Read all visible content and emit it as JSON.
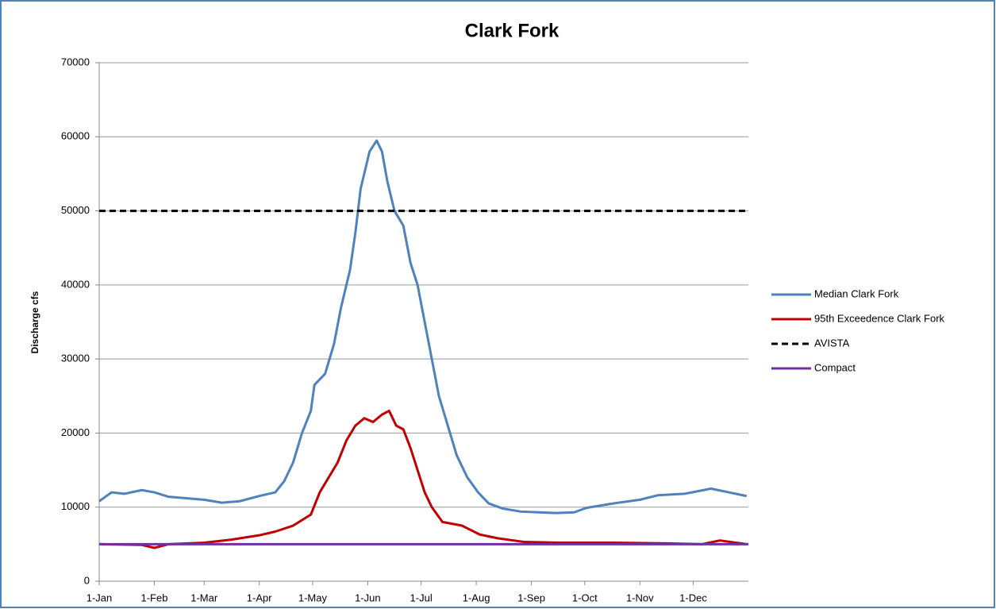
{
  "chart_data": {
    "type": "line",
    "title": "Clark Fork",
    "y_label": "Discharge cfs",
    "xlim": [
      1,
      366
    ],
    "xticks": [
      {
        "value": 1,
        "label": "1-Jan"
      },
      {
        "value": 32,
        "label": "1-Feb"
      },
      {
        "value": 60,
        "label": "1-Mar"
      },
      {
        "value": 91,
        "label": "1-Apr"
      },
      {
        "value": 121,
        "label": "1-May"
      },
      {
        "value": 152,
        "label": "1-Jun"
      },
      {
        "value": 182,
        "label": "1-Jul"
      },
      {
        "value": 213,
        "label": "1-Aug"
      },
      {
        "value": 244,
        "label": "1-Sep"
      },
      {
        "value": 274,
        "label": "1-Oct"
      },
      {
        "value": 305,
        "label": "1-Nov"
      },
      {
        "value": 335,
        "label": "1-Dec"
      }
    ],
    "ylim": [
      0,
      70000
    ],
    "yticks": [
      0,
      10000,
      20000,
      30000,
      40000,
      50000,
      60000,
      70000
    ],
    "grid": true,
    "legend": "right",
    "series": [
      {
        "name": "Median Clark Fork",
        "color": "#4f81bd",
        "dash": false,
        "x": [
          1,
          8,
          15,
          25,
          32,
          40,
          50,
          60,
          70,
          80,
          91,
          100,
          105,
          110,
          115,
          120,
          122,
          128,
          133,
          137,
          142,
          145,
          148,
          150,
          153,
          157,
          160,
          163,
          167,
          172,
          176,
          180,
          184,
          188,
          192,
          197,
          202,
          208,
          214,
          220,
          228,
          238,
          248,
          258,
          268,
          275,
          290,
          305,
          315,
          330,
          345,
          355,
          365
        ],
        "values": [
          10800,
          12000,
          11800,
          12300,
          12000,
          11400,
          11200,
          11000,
          10600,
          10800,
          11500,
          12000,
          13500,
          16000,
          20000,
          23000,
          26500,
          28000,
          32000,
          37000,
          42000,
          47000,
          53000,
          55000,
          58000,
          59500,
          58000,
          54000,
          50000,
          48000,
          43000,
          40000,
          35000,
          30000,
          25000,
          21000,
          17000,
          14000,
          12000,
          10500,
          9800,
          9400,
          9300,
          9200,
          9300,
          9900,
          10500,
          11000,
          11600,
          11800,
          12500,
          12000,
          11500
        ]
      },
      {
        "name": "95th Exceedence Clark Fork",
        "color": "#c00000",
        "dash": false,
        "x": [
          1,
          25,
          32,
          40,
          60,
          75,
          91,
          100,
          110,
          120,
          125,
          130,
          135,
          140,
          145,
          150,
          155,
          160,
          164,
          168,
          172,
          176,
          180,
          184,
          188,
          194,
          205,
          215,
          225,
          240,
          260,
          290,
          320,
          340,
          350,
          365
        ],
        "values": [
          5000,
          4900,
          4500,
          5000,
          5200,
          5600,
          6200,
          6700,
          7500,
          9000,
          12000,
          14000,
          16000,
          19000,
          21000,
          22000,
          21500,
          22500,
          23000,
          21000,
          20500,
          18000,
          15000,
          12000,
          10000,
          8000,
          7500,
          6300,
          5800,
          5300,
          5200,
          5200,
          5100,
          5000,
          5500,
          5000
        ]
      },
      {
        "name": "AVISTA",
        "color": "#000000",
        "dash": true,
        "x": [
          1,
          366
        ],
        "values": [
          50000,
          50000
        ]
      },
      {
        "name": "Compact",
        "color": "#7030a0",
        "dash": false,
        "x": [
          1,
          366
        ],
        "values": [
          5000,
          5000
        ]
      }
    ]
  }
}
